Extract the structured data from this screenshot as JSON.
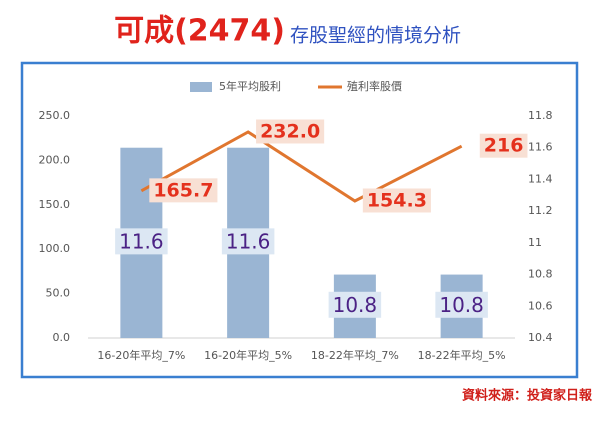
{
  "chart_data": {
    "type": "combo",
    "title": "可成(2474)",
    "subtitle": "存股聖經的情境分析",
    "source": "資料來源：投資家日報",
    "categories": [
      "16-20年平均_7%",
      "16-20年平均_5%",
      "18-22年平均_7%",
      "18-22年平均_5%"
    ],
    "series": [
      {
        "name": "5年平均股利",
        "type": "bar",
        "axis": "y2",
        "color": "#9ab5d3",
        "values": [
          11.6,
          11.6,
          10.8,
          10.8
        ]
      },
      {
        "name": "殖利率股價",
        "type": "line",
        "color": "#e0762f",
        "values": [
          165.7,
          232.0,
          154.3,
          216
        ],
        "value_labels": [
          "165.7",
          "232.0",
          "154.3",
          "216"
        ]
      }
    ],
    "ylim": [
      0,
      250
    ],
    "yticks": [
      {
        "value": 0,
        "label": "0.0"
      },
      {
        "value": 50,
        "label": "50.0"
      },
      {
        "value": 100,
        "label": "100.0"
      },
      {
        "value": 150,
        "label": "150.0"
      },
      {
        "value": 200,
        "label": "200.0"
      },
      {
        "value": 250,
        "label": "250.0"
      }
    ],
    "y2lim": [
      10.4,
      11.8
    ],
    "y2ticks": [
      10.4,
      10.6,
      10.8,
      11,
      11.2,
      11.4,
      11.6,
      11.8
    ],
    "legend": "top"
  }
}
